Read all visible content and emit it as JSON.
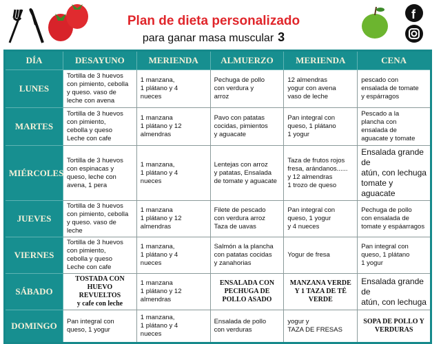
{
  "header": {
    "title": "Plan de dieta personalizado",
    "subtitle": "para ganar masa muscular",
    "number": "3",
    "icons": [
      "fork-knife-icon",
      "strawberries-icon",
      "green-apple-icon",
      "facebook-icon",
      "instagram-icon"
    ],
    "accent": "#e0262b",
    "table_color": "#178f90"
  },
  "columns": [
    "DÍA",
    "DESAYUNO",
    "MERIENDA",
    "ALMUERZO",
    "MERIENDA",
    "CENA"
  ],
  "rows": [
    {
      "day": "LUNES",
      "cells": [
        "Tortilla de 3 huevos\ncon pimiento, cebolla\ny queso.  vaso de\nleche con avena",
        "1 manzana,\n1 plátano y 4\nnueces",
        "Pechuga de pollo\ncon verdura y\narroz",
        "12 almendras\nyogur con avena\nvaso de leche",
        "pescado con\nensalada de tomate\ny espárragos"
      ]
    },
    {
      "day": "MARTES",
      "cells": [
        "Tortilla de 3 huevos\ncon pimiento,\ncebolla y queso\nLeche con cafe",
        "1 manzana\n1 plátano y 12\nalmendras",
        "Pavo con patatas\ncocidas, pimientos\ny aguacate",
        "Pan integral con\nqueso, 1 plátano\n1 yogur",
        "Pescado a la\nplancha con\nensalada de\naguacate y tomate"
      ]
    },
    {
      "day": "MIÉRCOLES",
      "cells": [
        "Tortilla de 3 huevos\ncon espinacas y\nqueso, leche con\navena, 1 pera",
        "1 manzana,\n1 plátano y 4\nnueces",
        "Lentejas con arroz\ny patatas, Ensalada\nde tomate y aguacate",
        "Taza de frutos rojos\nfresa, arándanos......\ny 12 almendras\n1 trozo de queso",
        "Ensalada grande de\natún, con lechuga\ntomate y aguacate"
      ]
    },
    {
      "day": "JUEVES",
      "cells": [
        "Tortilla de 3 huevos\ncon pimiento, cebolla\ny queso. vaso de leche",
        "1 manzana\n1 plátano y 12\nalmendras",
        "Filete de pescado\ncon verdura arroz\nTaza de uavas",
        "Pan integral con\nqueso, 1 yogur\ny 4 nueces",
        "Pechuga de pollo\ncon ensalada de\ntomate y espáarragos"
      ]
    },
    {
      "day": "VIERNES",
      "cells": [
        "Tortilla de 3 huevos\ncon pimiento,\ncebolla y queso\nLeche con cafe",
        "1 manzana,\n1 plátano y 4\nnueces",
        "Salmón a la plancha\ncon patatas cocidas\ny zanahorias",
        "Yogur de fresa",
        "Pan integral con\nqueso, 1 plátano\n1 yogur"
      ]
    },
    {
      "day": "SÁBADO",
      "cells": [
        "TOSTADA CON\nHUEVO REVUELTOS\ny  cafe con leche",
        "1 manzana\n1 plátano y 12\nalmendras",
        "ENSALADA CON\nPECHUGA DE\nPOLLO ASADO",
        "MANZANA VERDE\nY 1 TAZA DE TÉ\nVERDE",
        "Ensalada grande de\natún, con lechuga"
      ]
    },
    {
      "day": "DOMINGO",
      "cells": [
        "Pan integral con\nqueso, 1 yogur",
        "1 manzana,\n1 plátano y 4\nnueces",
        "Ensalada de pollo\ncon verduras",
        "yogur   y\nTAZA DE FRESAS",
        "SOPA DE POLLO Y\nVERDURAS"
      ]
    }
  ]
}
